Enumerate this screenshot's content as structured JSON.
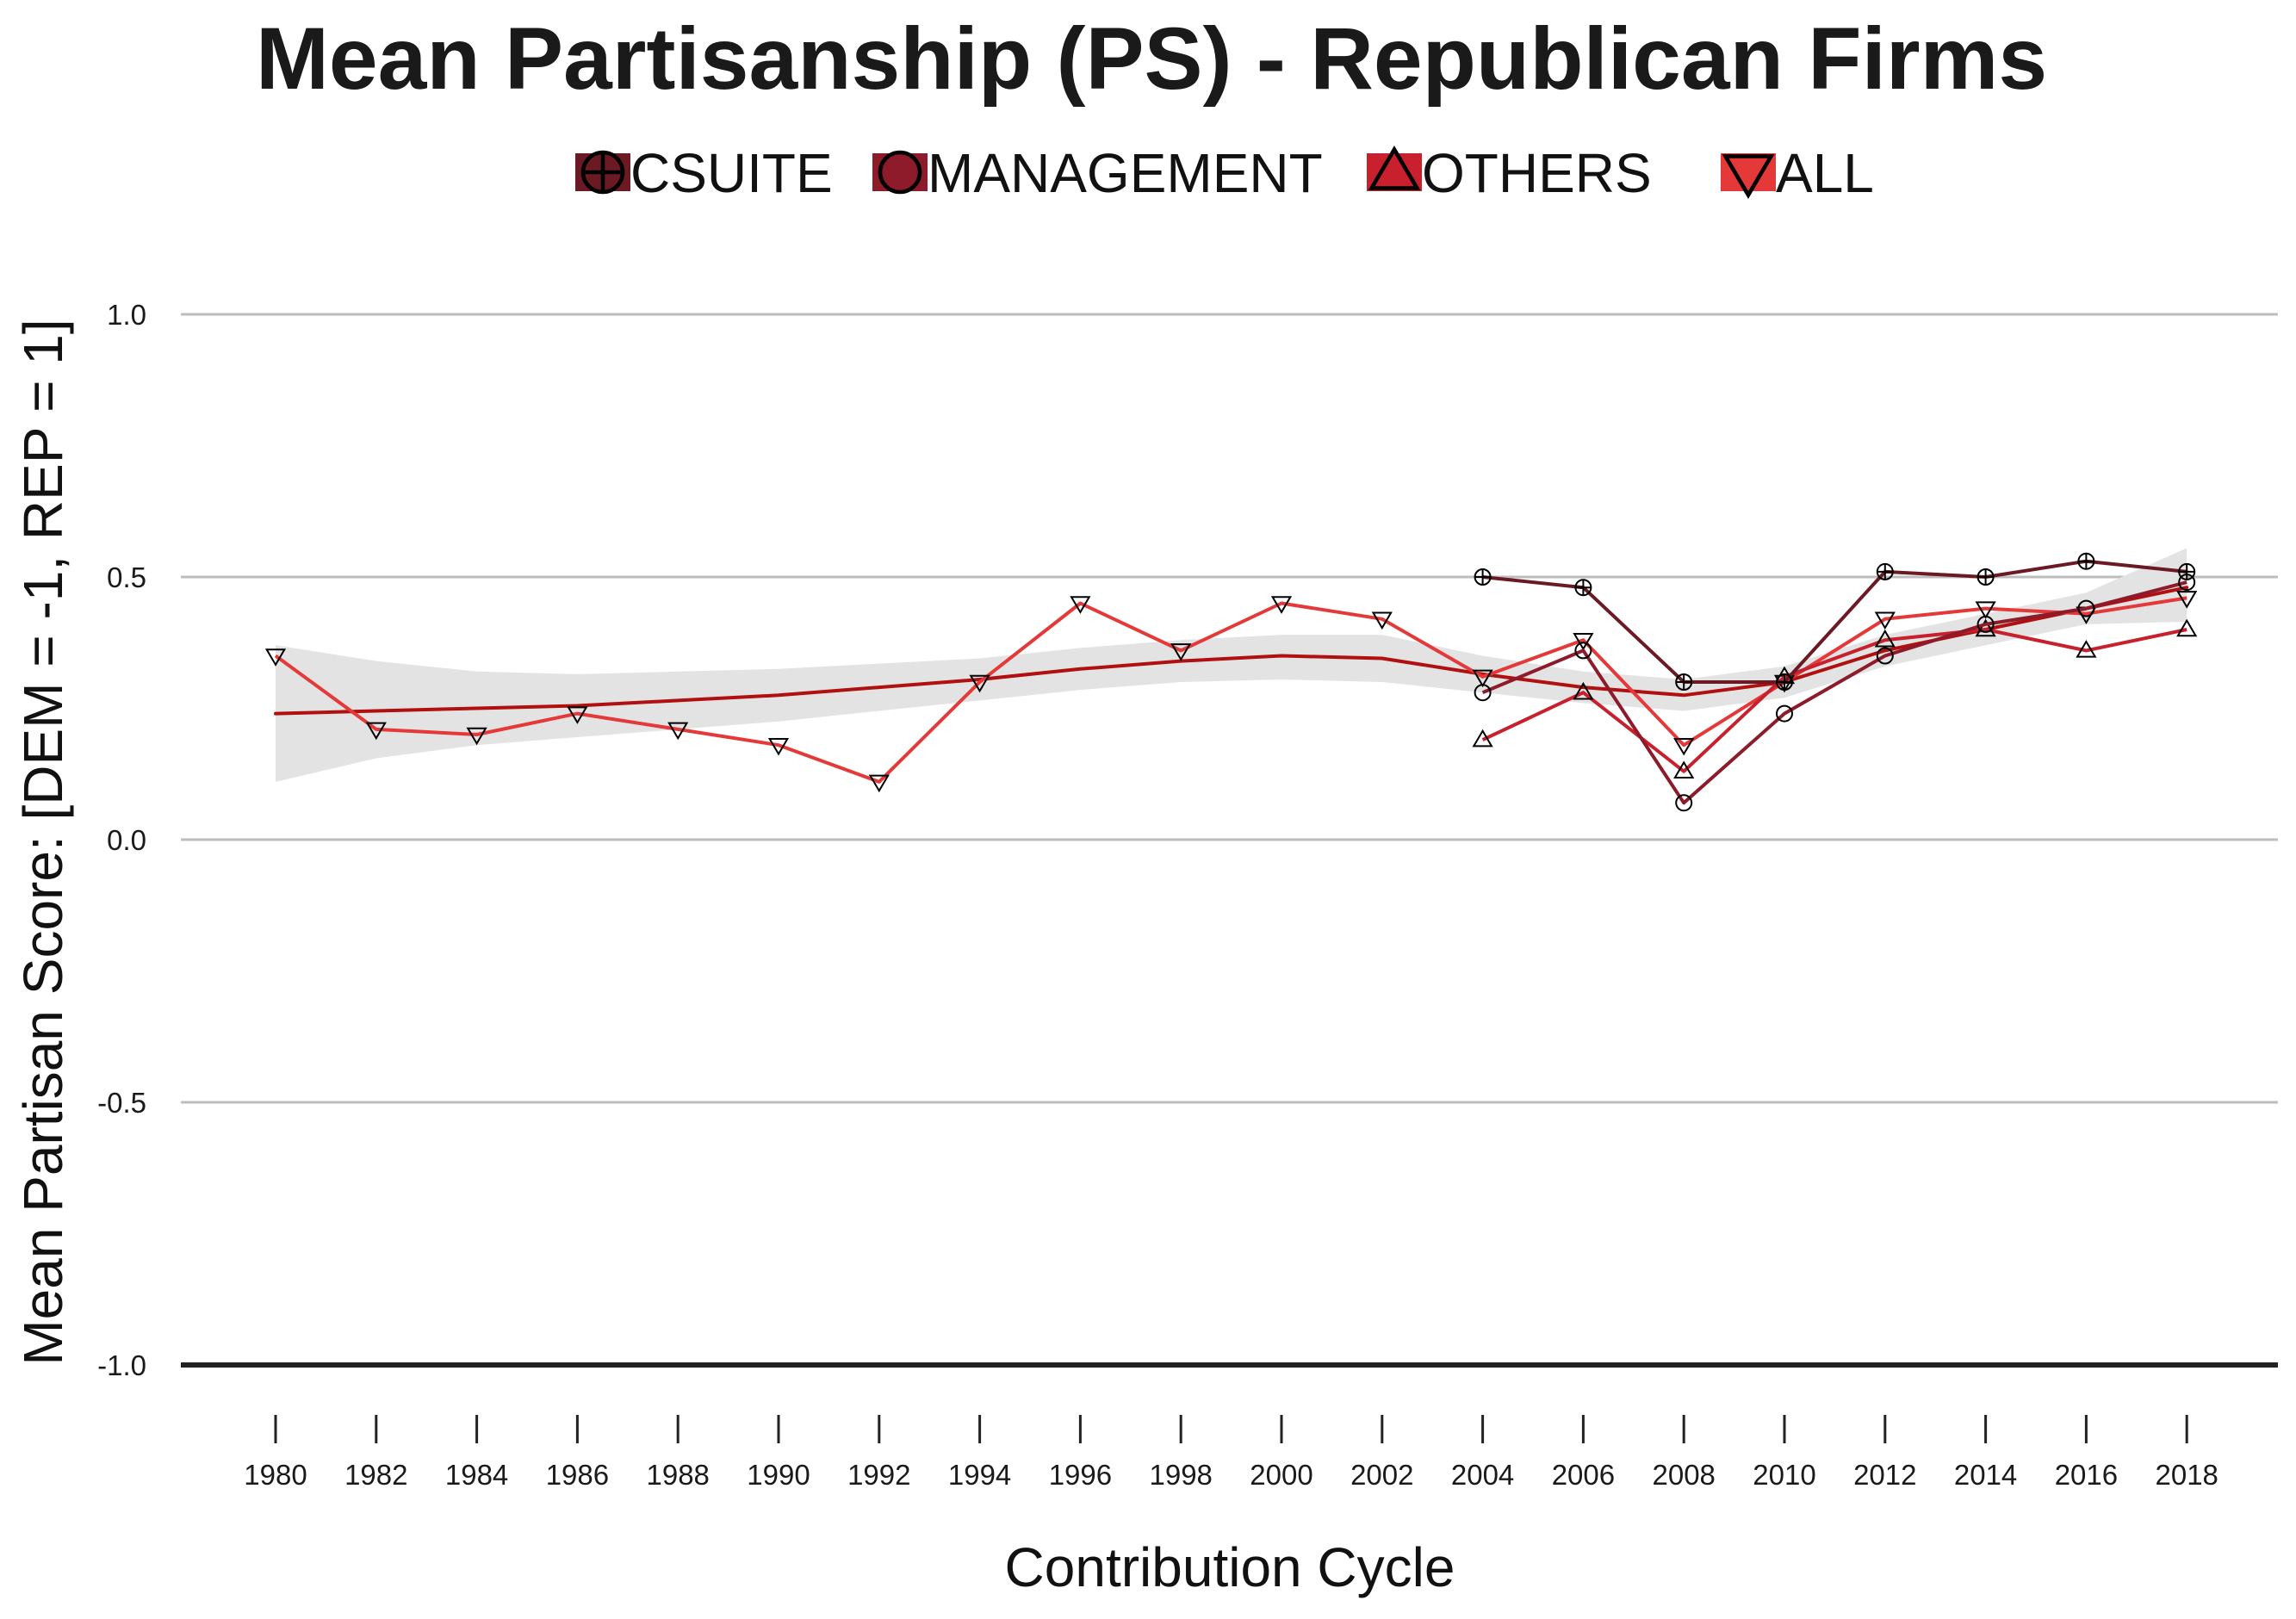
{
  "chart_data": {
    "type": "line",
    "title": "Mean Partisanship (PS) - Republican Firms",
    "xlabel": "Contribution Cycle",
    "ylabel": "Mean Partisan Score: [DEM = -1, REP = 1]",
    "x_ticks": [
      "1980",
      "1982",
      "1984",
      "1986",
      "1988",
      "1990",
      "1992",
      "1994",
      "1996",
      "1998",
      "2000",
      "2002",
      "2004",
      "2006",
      "2008",
      "2010",
      "2012",
      "2014",
      "2016",
      "2018"
    ],
    "y_ticks": [
      "-1.0",
      "-0.5",
      "0.0",
      "0.5",
      "1.0"
    ],
    "y_tick_values": [
      -1.0,
      -0.5,
      0.0,
      0.5,
      1.0
    ],
    "xlim": [
      1980,
      2018
    ],
    "ylim": [
      -1.0,
      1.0
    ],
    "grid": "horizontal",
    "legend_position": "top",
    "series": [
      {
        "name": "CSUITE",
        "color": "#6b1a24",
        "marker": "circle-plus",
        "x": [
          2004,
          2006,
          2008,
          2010,
          2012,
          2014,
          2016,
          2018
        ],
        "y": [
          0.5,
          0.48,
          0.3,
          0.3,
          0.51,
          0.5,
          0.53,
          0.51
        ]
      },
      {
        "name": "MANAGEMENT",
        "color": "#8e1b2a",
        "marker": "circle",
        "x": [
          2004,
          2006,
          2008,
          2010,
          2012,
          2014,
          2016,
          2018
        ],
        "y": [
          0.28,
          0.36,
          0.07,
          0.24,
          0.35,
          0.41,
          0.44,
          0.49
        ]
      },
      {
        "name": "OTHERS",
        "color": "#c8202d",
        "marker": "triangle-up",
        "x": [
          2004,
          2006,
          2008,
          2010,
          2012,
          2014,
          2016,
          2018
        ],
        "y": [
          0.19,
          0.28,
          0.13,
          0.31,
          0.38,
          0.4,
          0.36,
          0.4
        ]
      },
      {
        "name": "ALL",
        "color": "#e53838",
        "marker": "triangle-down",
        "x": [
          1980,
          1982,
          1984,
          1986,
          1988,
          1990,
          1992,
          1994,
          1996,
          1998,
          2000,
          2002,
          2004,
          2006,
          2008,
          2010,
          2012,
          2014,
          2016,
          2018
        ],
        "y": [
          0.35,
          0.21,
          0.2,
          0.24,
          0.21,
          0.18,
          0.11,
          0.3,
          0.45,
          0.36,
          0.45,
          0.42,
          0.31,
          0.38,
          0.18,
          0.3,
          0.42,
          0.44,
          0.43,
          0.46
        ]
      }
    ],
    "smooth": {
      "color": "#b01010",
      "band_color": "#e3e3e3",
      "x": [
        1980,
        1982,
        1984,
        1986,
        1988,
        1990,
        1992,
        1994,
        1996,
        1998,
        2000,
        2002,
        2004,
        2006,
        2008,
        2010,
        2012,
        2014,
        2016,
        2018
      ],
      "y": [
        0.24,
        0.245,
        0.25,
        0.255,
        0.265,
        0.275,
        0.29,
        0.305,
        0.325,
        0.34,
        0.35,
        0.345,
        0.315,
        0.29,
        0.275,
        0.3,
        0.36,
        0.4,
        0.44,
        0.48
      ],
      "lower": [
        0.11,
        0.155,
        0.18,
        0.195,
        0.21,
        0.225,
        0.245,
        0.265,
        0.285,
        0.3,
        0.305,
        0.3,
        0.28,
        0.26,
        0.245,
        0.27,
        0.33,
        0.37,
        0.41,
        0.415
      ],
      "upper": [
        0.37,
        0.34,
        0.32,
        0.315,
        0.32,
        0.325,
        0.335,
        0.345,
        0.365,
        0.38,
        0.39,
        0.39,
        0.35,
        0.32,
        0.305,
        0.33,
        0.39,
        0.43,
        0.47,
        0.555
      ]
    }
  }
}
